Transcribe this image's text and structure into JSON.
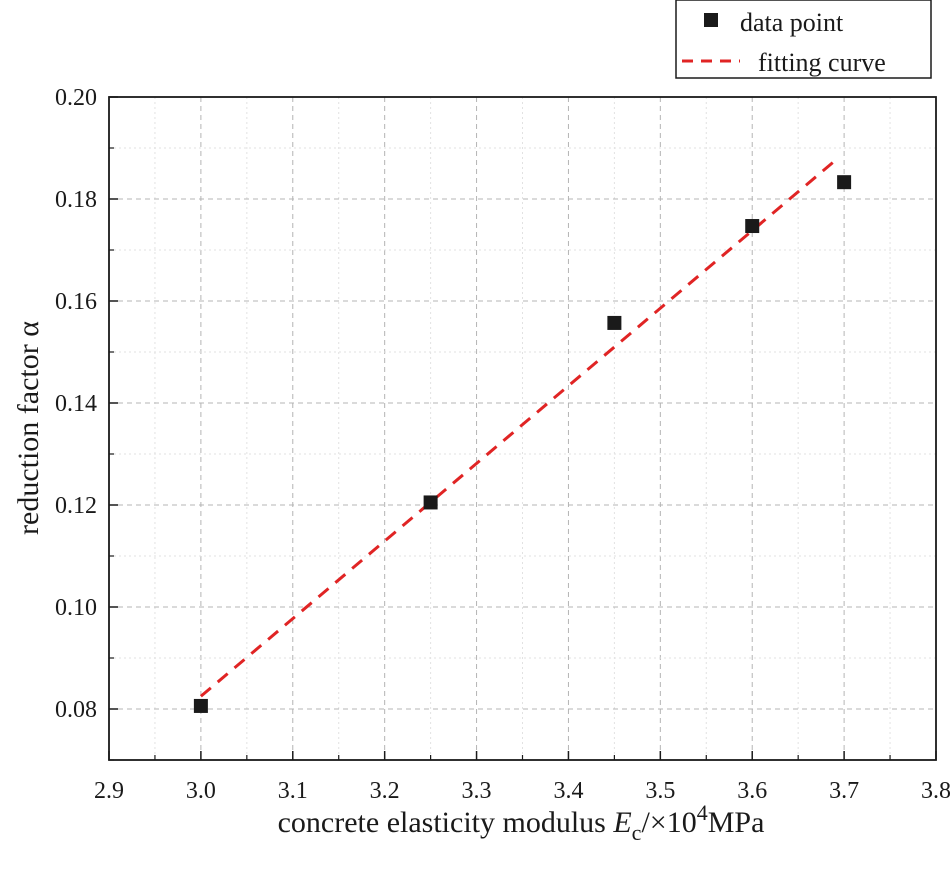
{
  "chart_data": {
    "type": "scatter",
    "title": "",
    "xlabel": {
      "prefix": "concrete elasticity modulus ",
      "var": "E",
      "var_sub": "c",
      "mid": "/×10",
      "exp": "4",
      "unit": "MPa"
    },
    "ylabel": "reduction factor α",
    "xlim": [
      2.9,
      3.8
    ],
    "ylim": [
      0.07,
      0.2
    ],
    "xticks": [
      "2.9",
      "3.0",
      "3.1",
      "3.2",
      "3.3",
      "3.4",
      "3.5",
      "3.6",
      "3.7",
      "3.8"
    ],
    "yticks": [
      "0.08",
      "0.10",
      "0.12",
      "0.14",
      "0.16",
      "0.18",
      "0.20"
    ],
    "grid": true,
    "legend_position": "top-right",
    "series": [
      {
        "name": "data point",
        "kind": "scatter",
        "marker": "square",
        "color": "#1a1a1a",
        "x": [
          3.0,
          3.25,
          3.45,
          3.6,
          3.7
        ],
        "y": [
          0.0806,
          0.1205,
          0.1557,
          0.1747,
          0.1833
        ]
      },
      {
        "name": "fitting curve",
        "kind": "line",
        "style": "dashed",
        "color": "#e02424",
        "x": [
          3.0,
          3.69
        ],
        "y": [
          0.0825,
          0.1875
        ]
      }
    ]
  }
}
